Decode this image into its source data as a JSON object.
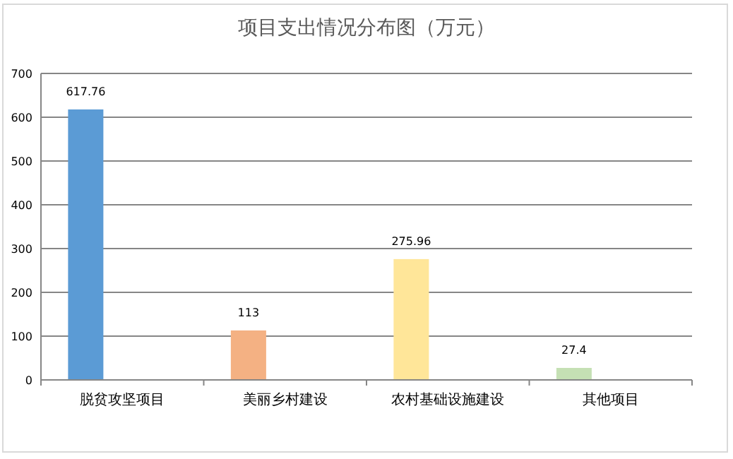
{
  "chart_data": {
    "type": "bar",
    "title": "项目支出情况分布图（万元）",
    "categories": [
      "脱贫攻坚项目",
      "美丽乡村建设",
      "农村基础设施建设",
      "其他项目"
    ],
    "values": [
      617.76,
      113,
      275.96,
      27.4
    ],
    "colors": [
      "#5b9bd5",
      "#f4b183",
      "#ffe699",
      "#c5e0b4"
    ],
    "value_labels": [
      "617.76",
      "113",
      "275.96",
      "27.4"
    ],
    "ylim": [
      0,
      700
    ],
    "yticks": [
      0,
      100,
      200,
      300,
      400,
      500,
      600,
      700
    ],
    "grid": "y"
  }
}
